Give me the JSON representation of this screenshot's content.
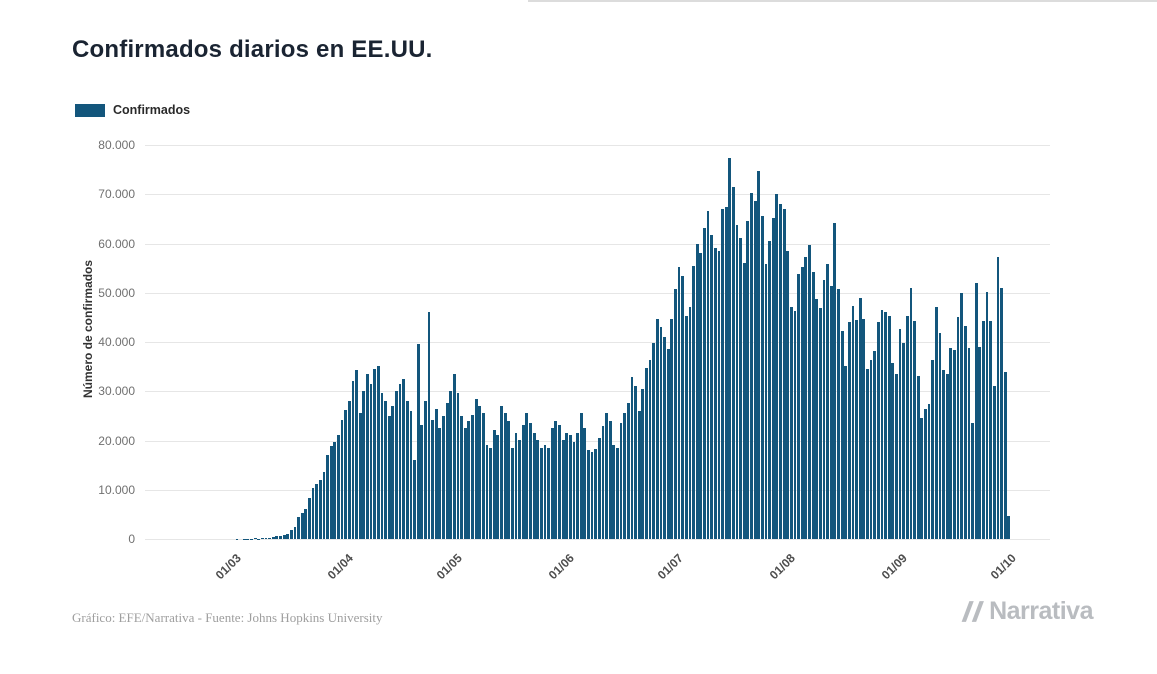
{
  "page": {
    "footer_credit": "Gráfico: EFE/Narrativa - Fuente: Johns Hopkins University",
    "brand": "Narrativa"
  },
  "colors": {
    "bar": "#13567c",
    "title": "#1a2432",
    "grid": "#e6e6e6"
  },
  "chart_data": {
    "type": "bar",
    "title": "Confirmados diarios en EE.UU.",
    "series_name": "Confirmados",
    "xlabel": "",
    "ylabel": "Número de confirmados",
    "ylim": [
      0,
      80000
    ],
    "grid": true,
    "legend_position": "top-left",
    "start_date": "2020-02-06",
    "x_tick_labels": [
      "01/03",
      "01/04",
      "01/05",
      "01/06",
      "01/07",
      "01/08",
      "01/09",
      "01/10"
    ],
    "x_tick_indices": [
      24,
      55,
      85,
      116,
      146,
      177,
      208,
      238
    ],
    "y_ticks": [
      0,
      10000,
      20000,
      30000,
      40000,
      50000,
      60000,
      70000,
      80000
    ],
    "y_tick_labels": [
      "0",
      "10.000",
      "20.000",
      "30.000",
      "40.000",
      "50.000",
      "60.000",
      "70.000",
      "80.000"
    ],
    "values": [
      0,
      0,
      1,
      0,
      2,
      0,
      3,
      1,
      2,
      0,
      4,
      3,
      2,
      5,
      4,
      6,
      8,
      6,
      9,
      12,
      10,
      14,
      8,
      6,
      3,
      20,
      14,
      22,
      34,
      75,
      105,
      95,
      121,
      271,
      287,
      372,
      550,
      586,
      843,
      983,
      1750,
      2350,
      4490,
      5360,
      6060,
      8270,
      10410,
      11200,
      12050,
      13560,
      17050,
      18870,
      19650,
      21050,
      24200,
      26220,
      28060,
      32150,
      34270,
      25550,
      30100,
      33500,
      31550,
      34500,
      35200,
      29560,
      28100,
      25000,
      27080,
      30100,
      31450,
      32500,
      28080,
      26060,
      16050,
      39500,
      23050,
      28100,
      46000,
      24100,
      26500,
      22550,
      25060,
      27550,
      30100,
      33500,
      29550,
      25050,
      22550,
      24050,
      25100,
      28500,
      27050,
      25550,
      19050,
      18550,
      22050,
      21050,
      27050,
      25550,
      24050,
      18550,
      21550,
      20050,
      23050,
      25550,
      23550,
      21550,
      20050,
      18550,
      19050,
      18550,
      22550,
      24050,
      23050,
      20050,
      21550,
      21050,
      19800,
      21550,
      25550,
      22550,
      18050,
      17750,
      18250,
      20550,
      22850,
      25550,
      24050,
      19050,
      18550,
      23550,
      25550,
      27550,
      32850,
      31050,
      26050,
      30550,
      34700,
      36400,
      39700,
      44600,
      43050,
      41050,
      38600,
      44700,
      50700,
      55200,
      53500,
      45300,
      47050,
      55500,
      60000,
      58050,
      63200,
      66600,
      61800,
      59000,
      58500,
      67050,
      67400,
      77300,
      71550,
      63800,
      61050,
      56050,
      64500,
      70300,
      68700,
      74700,
      65500,
      55800,
      60600,
      65200,
      70050,
      68050,
      67050,
      58500,
      47100,
      46300,
      53800,
      55200,
      57200,
      59700,
      54200,
      48700,
      46900,
      52500,
      55900,
      51400,
      64100,
      50700,
      42300,
      35100,
      44000,
      47400,
      44500,
      49000,
      44700,
      34500,
      36400,
      38200,
      44100,
      46400,
      46000,
      45200,
      35800,
      33600,
      42600,
      39700,
      45200,
      51000,
      44300,
      33200,
      24600,
      26500,
      27500,
      36300,
      47100,
      41800,
      34300,
      33500,
      38800,
      38300,
      45000,
      49900,
      43200,
      38800,
      23600,
      52000,
      39000,
      44300,
      50100,
      44200,
      31000,
      57200,
      51000,
      34000,
      4600
    ]
  }
}
